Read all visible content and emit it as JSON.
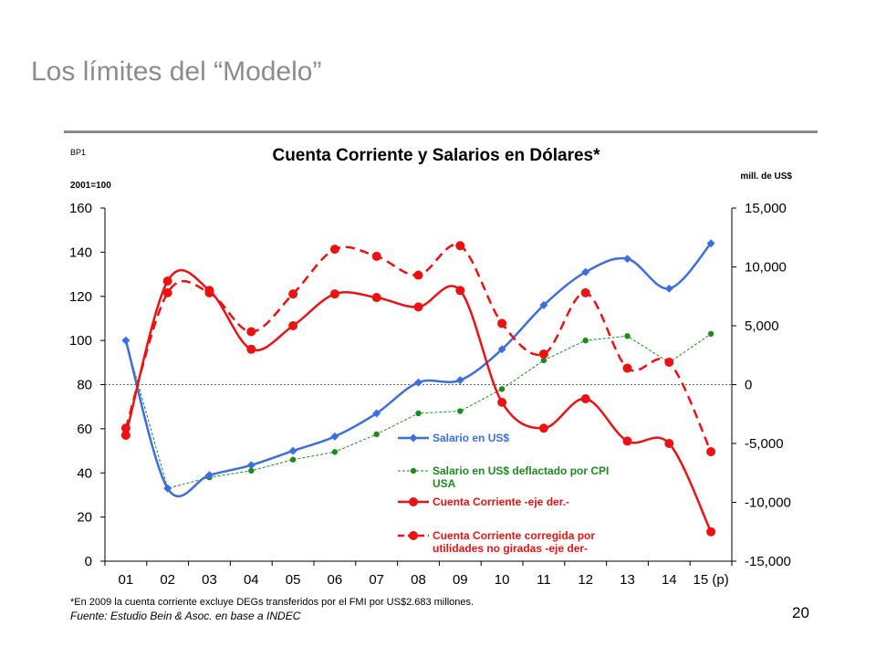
{
  "slide": {
    "title": "Los límites del “Modelo”",
    "page_number": "20"
  },
  "chart_data": {
    "type": "line",
    "title": "Cuenta Corriente y Salarios en Dólares*",
    "code_label": "BP1",
    "left_axis_label": "2001=100",
    "right_axis_label": "mill. de US$",
    "categories": [
      "01",
      "02",
      "03",
      "04",
      "05",
      "06",
      "07",
      "08",
      "09",
      "10",
      "11",
      "12",
      "13",
      "14",
      "15 (p)"
    ],
    "left_ylim": [
      0,
      160
    ],
    "left_ticks": [
      "0",
      "20",
      "40",
      "60",
      "80",
      "100",
      "120",
      "140",
      "160"
    ],
    "right_ylim": [
      -15000,
      15000
    ],
    "right_ticks": [
      "-15,000",
      "-10,000",
      "-5,000",
      "0",
      "5,000",
      "10,000",
      "15,000"
    ],
    "grid": false,
    "zero_line_right": 0,
    "series": [
      {
        "name": "Salario en US$",
        "axis": "left",
        "color": "#3b6fe0",
        "style": "solid",
        "marker": "diamond",
        "values": [
          100,
          33,
          39,
          43.5,
          50,
          56.5,
          67,
          81,
          82,
          96,
          116,
          131,
          137,
          123.5,
          144
        ]
      },
      {
        "name": "Salario en US$ deflactado por CPI USA",
        "axis": "left",
        "color": "#1a8c1a",
        "style": "dotted",
        "marker": "circle-small",
        "values": [
          100,
          33,
          38,
          41,
          46,
          49.5,
          57.5,
          67,
          68,
          78,
          91,
          100,
          102,
          90,
          103
        ]
      },
      {
        "name": "Cuenta Corriente -eje der.-",
        "axis": "right",
        "color": "#ee1111",
        "style": "solid",
        "marker": "circle",
        "values": [
          -4300,
          8800,
          8000,
          3000,
          5000,
          7700,
          7400,
          6600,
          8000,
          -1500,
          -3700,
          -1200,
          -4800,
          -5000,
          -12500
        ]
      },
      {
        "name": "Cuenta Corriente corregida por utilidades no giradas -eje der-",
        "axis": "right",
        "color": "#ee1111",
        "style": "dashed",
        "marker": "circle",
        "values": [
          -3700,
          7800,
          7800,
          4500,
          7700,
          11500,
          10900,
          9300,
          11800,
          5200,
          2600,
          7800,
          1400,
          1900,
          -5700
        ]
      }
    ],
    "legend_position": "bottom-right",
    "footnote": "*En 2009 la cuenta corriente excluye DEGs transferidos por el FMI por US$2.683 millones.",
    "source": "Fuente: Estudio Bein & Asoc. en  base a INDEC"
  }
}
